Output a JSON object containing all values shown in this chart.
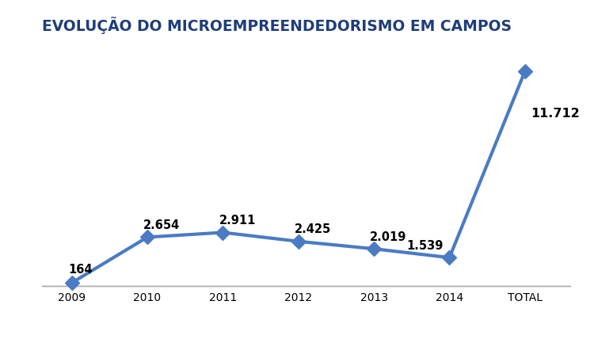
{
  "title": "EVOLUÇÃO DO MICROEMPREENDEDORISMO EM CAMPOS",
  "categories": [
    "2009",
    "2010",
    "2011",
    "2012",
    "2013",
    "2014",
    "TOTAL"
  ],
  "values": [
    164,
    2654,
    2911,
    2425,
    2019,
    1539,
    11712
  ],
  "labels": [
    "164",
    "2.654",
    "2.911",
    "2.425",
    "2.019",
    "1.539",
    "11.712"
  ],
  "line_color": "#4A7BC4",
  "marker_color": "#4A7BC4",
  "title_color": "#1F3D7A",
  "label_color": "#000000",
  "background_color": "#FFFFFF",
  "title_fontsize": 13.5,
  "label_fontsize": 10.5,
  "tick_fontsize": 10.5,
  "line_width": 3.0,
  "marker_size": 9,
  "ylim": [
    -500,
    13200
  ],
  "xlim": [
    -0.4,
    6.6
  ]
}
